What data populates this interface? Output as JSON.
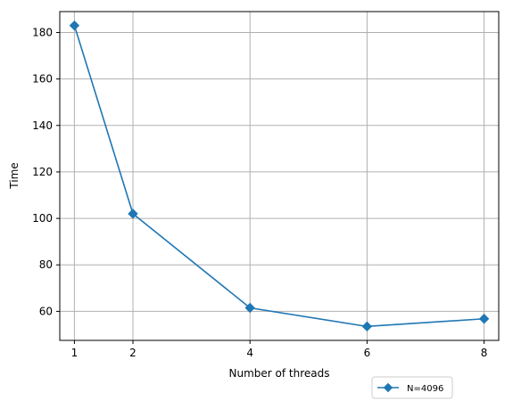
{
  "chart_data": {
    "type": "line",
    "title": "",
    "xlabel": "Number of threads",
    "ylabel": "Time",
    "x": [
      1,
      2,
      4,
      6,
      8
    ],
    "xticks": [
      1,
      2,
      4,
      6,
      8
    ],
    "yticks": [
      60,
      80,
      100,
      120,
      140,
      160,
      180
    ],
    "xlim": [
      0.75,
      8.25
    ],
    "ylim": [
      47.5,
      189
    ],
    "grid": true,
    "legend_position": "below-right",
    "series": [
      {
        "name": "N=4096",
        "values": [
          183,
          102,
          61.5,
          53.5,
          56.8
        ],
        "color": "#1f77b4",
        "marker": "diamond"
      }
    ]
  }
}
